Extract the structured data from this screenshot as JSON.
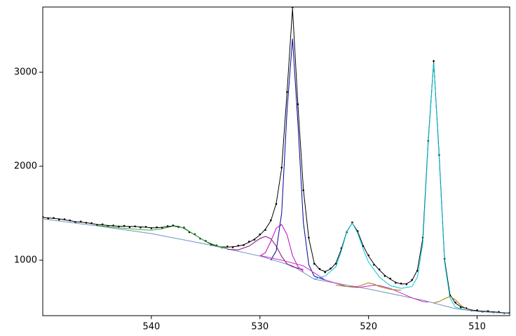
{
  "chart_data": {
    "type": "line",
    "xlim": [
      550,
      507
    ],
    "ylim": [
      410,
      3694
    ],
    "xticks": [
      540,
      530,
      520,
      510
    ],
    "yticks": [
      1000,
      2000,
      3000
    ],
    "x": [
      550,
      549.5,
      549,
      548.5,
      548,
      547.5,
      547,
      546.5,
      546,
      545.5,
      545,
      544.5,
      544,
      543.5,
      543,
      542.5,
      542,
      541.5,
      541,
      540.5,
      540,
      539.5,
      539,
      538.5,
      538,
      537.5,
      537,
      536.5,
      536,
      535.5,
      535,
      534.5,
      534,
      533.5,
      533,
      532.5,
      532,
      531.5,
      531,
      530.5,
      530,
      529.5,
      529,
      528.5,
      528,
      527.5,
      527,
      526.5,
      526,
      525.5,
      525,
      524.5,
      524,
      523.5,
      523,
      522.5,
      522,
      521.5,
      521,
      520.5,
      520,
      519.5,
      519,
      518.5,
      518,
      517.5,
      517,
      516.5,
      516,
      515.5,
      515,
      514.5,
      514,
      513.5,
      513,
      512.5,
      512,
      511.5,
      511,
      510.5,
      510,
      509.5,
      509,
      508.5,
      508,
      507.5,
      507
    ],
    "series": [
      {
        "color": "#000000",
        "marker": true,
        "values": [
          1462,
          1445,
          1450,
          1432,
          1436,
          1424,
          1405,
          1412,
          1398,
          1394,
          1375,
          1382,
          1364,
          1370,
          1358,
          1366,
          1352,
          1360,
          1348,
          1355,
          1340,
          1350,
          1344,
          1362,
          1370,
          1352,
          1348,
          1298,
          1276,
          1230,
          1205,
          1162,
          1158,
          1135,
          1146,
          1138,
          1155,
          1160,
          1198,
          1218,
          1275,
          1322,
          1425,
          1598,
          1985,
          2790,
          3690,
          2660,
          1745,
          1240,
          962,
          908,
          872,
          912,
          962,
          1128,
          1298,
          1402,
          1310,
          1150,
          1052,
          952,
          902,
          832,
          805,
          760,
          752,
          744,
          790,
          888,
          1240,
          2270,
          3120,
          2120,
          1015,
          628,
          550,
          500,
          490,
          465,
          468,
          452,
          458,
          446,
          450,
          436,
          442
        ]
      },
      {
        "color": "#000000",
        "values": [
          1455,
          1450,
          1445,
          1440,
          1430,
          1420,
          1410,
          1405,
          1400,
          1390,
          1380,
          1375,
          1370,
          1365,
          1362,
          1360,
          1360,
          1358,
          1355,
          1350,
          1345,
          1345,
          1350,
          1358,
          1365,
          1360,
          1340,
          1305,
          1270,
          1235,
          1200,
          1170,
          1150,
          1142,
          1140,
          1143,
          1150,
          1165,
          1190,
          1225,
          1268,
          1330,
          1418,
          1604,
          1977,
          2798,
          3678,
          2649,
          1753,
          1231,
          970,
          900,
          880,
          905,
          970,
          1119,
          1305,
          1395,
          1305,
          1156,
          1044,
          960,
          895,
          840,
          798,
          765,
          746,
          750,
          783,
          895,
          1231,
          2276,
          3111,
          2127,
          1007,
          634,
          544,
          505,
          485,
          470,
          462,
          458,
          455,
          450,
          445,
          440,
          438
        ]
      },
      {
        "color": "#7090c0",
        "x": [
          550,
          545,
          540,
          535,
          530,
          527,
          525,
          520,
          515,
          512,
          510,
          507
        ],
        "values": [
          1440,
          1365,
          1283,
          1171,
          1044,
          940,
          798,
          694,
          574,
          485,
          455,
          432
        ]
      },
      {
        "color": "#30b030",
        "x": [
          545,
          543,
          541,
          540,
          539,
          538,
          537,
          536,
          535,
          534,
          533
        ],
        "values": [
          1368,
          1345,
          1325,
          1320,
          1335,
          1362,
          1345,
          1270,
          1200,
          1155,
          1125
        ]
      },
      {
        "color": "#800080",
        "x": [
          533,
          532,
          531,
          530,
          529.5,
          529,
          528.5,
          528,
          527.5,
          527,
          526
        ],
        "values": [
          1115,
          1110,
          1150,
          1230,
          1253,
          1230,
          1150,
          1040,
          960,
          930,
          900
        ]
      },
      {
        "color": "#c000c0",
        "x": [
          530,
          529.5,
          529,
          528.5,
          528,
          527.5,
          527,
          526.5,
          526
        ],
        "values": [
          1045,
          1080,
          1200,
          1340,
          1380,
          1270,
          1050,
          930,
          880
        ]
      },
      {
        "color": "#000099",
        "x": [
          529,
          528.5,
          528,
          527.5,
          527,
          526.5,
          526,
          525.5,
          525,
          524
        ],
        "values": [
          1000,
          1100,
          1500,
          2600,
          3357,
          2450,
          1400,
          950,
          830,
          790
        ]
      },
      {
        "color": "#00c8d8",
        "x": [
          525,
          524,
          523,
          522.5,
          522,
          521.5,
          521,
          520.5,
          520,
          519,
          518,
          517,
          516,
          515.5,
          515,
          514.5,
          514,
          513.5,
          513,
          512.5,
          512,
          511
        ],
        "values": [
          800,
          830,
          930,
          1100,
          1300,
          1395,
          1290,
          1120,
          980,
          820,
          730,
          700,
          720,
          820,
          1180,
          2250,
          3100,
          2100,
          980,
          600,
          500,
          470
        ]
      },
      {
        "color": "#d020d0",
        "x": [
          530,
          528,
          526,
          524,
          522,
          521,
          520,
          519.5,
          519,
          518,
          517,
          516,
          515,
          514.5
        ],
        "values": [
          1050,
          1000,
          940,
          790,
          720,
          710,
          725,
          735,
          730,
          700,
          650,
          600,
          560,
          555
        ]
      },
      {
        "color": "#a08000",
        "x": [
          523,
          522,
          521,
          520.5,
          520,
          519.5,
          519,
          518,
          517
        ],
        "values": [
          735,
          720,
          720,
          740,
          760,
          745,
          720,
          690,
          680
        ]
      },
      {
        "color": "#a08000",
        "x": [
          514,
          513.5,
          513,
          512.5,
          512,
          511.5,
          511
        ],
        "values": [
          545,
          560,
          590,
          615,
          580,
          520,
          485
        ]
      }
    ]
  }
}
